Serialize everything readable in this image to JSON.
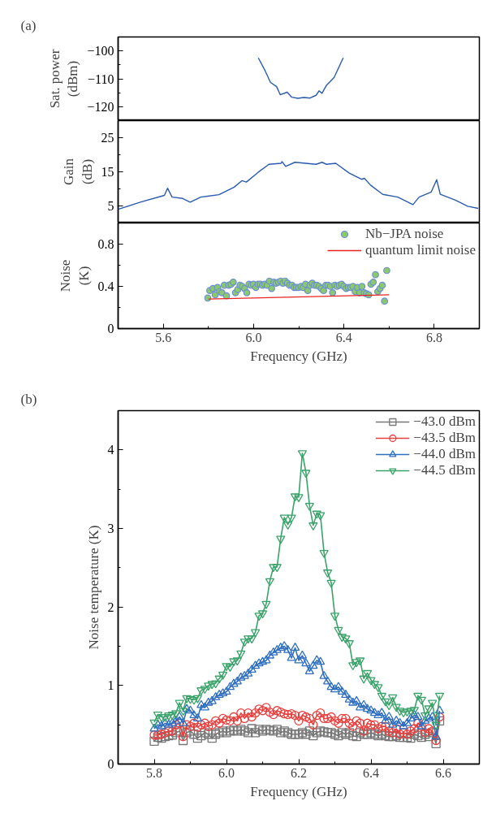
{
  "chart_data": [
    {
      "type": "line",
      "title": "(a)",
      "ylabel": "Sat. power (dBm)",
      "xlim": [
        5.4,
        7.0
      ],
      "xticks": [
        5.6,
        6.0,
        6.4,
        6.8
      ],
      "ylim": [
        -125,
        -95
      ],
      "yticks": [
        -120,
        -110,
        -100
      ],
      "tick_labels": "y",
      "grid": false,
      "legend": false,
      "series": [
        {
          "color": "#2a5bb0",
          "x": [
            6.021,
            6.048,
            6.075,
            6.102,
            6.118,
            6.149,
            6.169,
            6.196,
            6.223,
            6.25,
            6.277,
            6.29,
            6.303,
            6.323,
            6.357,
            6.397
          ],
          "values": [
            -102.5,
            -106.6,
            -111.3,
            -112.8,
            -115.7,
            -114.8,
            -116.6,
            -117.0,
            -116.7,
            -116.9,
            -115.9,
            -114.3,
            -115.2,
            -112.3,
            -109.5,
            -102.5
          ]
        }
      ]
    },
    {
      "type": "line",
      "ylabel": "Gain (dB)",
      "xlim": [
        5.4,
        7.0
      ],
      "xticks": [
        5.6,
        6.0,
        6.4,
        6.8
      ],
      "ylim": [
        0,
        30
      ],
      "yticks": [
        5,
        15,
        25
      ],
      "tick_labels": "y",
      "grid": false,
      "legend": false,
      "series": [
        {
          "color": "#2a5bb0",
          "x": [
            5.4,
            5.498,
            5.605,
            5.619,
            5.639,
            5.686,
            5.719,
            5.766,
            5.847,
            5.914,
            5.948,
            5.968,
            6.021,
            6.068,
            6.122,
            6.126,
            6.142,
            6.183,
            6.277,
            6.303,
            6.323,
            6.364,
            6.424,
            6.478,
            6.491,
            6.518,
            6.572,
            6.639,
            6.706,
            6.733,
            6.787,
            6.811,
            6.827,
            6.894,
            6.948,
            6.995
          ],
          "values": [
            4.0,
            6.1,
            8.1,
            10.2,
            7.6,
            7.2,
            6.1,
            7.6,
            8.3,
            10.5,
            12.4,
            12.0,
            14.9,
            17.2,
            17.5,
            18.0,
            16.6,
            17.8,
            17.2,
            17.8,
            17.2,
            17.5,
            14.6,
            12.8,
            13.1,
            11.1,
            8.4,
            7.6,
            5.4,
            7.6,
            9.1,
            12.7,
            8.4,
            6.7,
            4.9,
            4.3
          ]
        }
      ]
    },
    {
      "type": "scatter",
      "xlabel": "Frequency (GHz)",
      "ylabel": "Noise (K)",
      "xlim": [
        5.4,
        7.0
      ],
      "xticks": [
        5.6,
        {
          "value": 6.0,
          "label": "6.0"
        },
        6.4,
        6.8
      ],
      "ylim": [
        0,
        1.0
      ],
      "yticks": [
        0,
        0.4,
        0.8
      ],
      "grid": false,
      "legend": "top right",
      "series": [
        {
          "name": "Nb−JPA noise",
          "type": "scatter",
          "marker": "circle",
          "color": "#8cc96e",
          "x": [
            5.797,
            5.806,
            5.82,
            5.83,
            5.84,
            5.85,
            5.86,
            5.87,
            5.88,
            5.89,
            5.9,
            5.91,
            5.92,
            5.93,
            5.94,
            5.95,
            5.96,
            5.97,
            5.98,
            5.99,
            6.0,
            6.01,
            6.02,
            6.03,
            6.04,
            6.05,
            6.06,
            6.07,
            6.08,
            6.09,
            6.1,
            6.11,
            6.12,
            6.13,
            6.14,
            6.15,
            6.16,
            6.17,
            6.18,
            6.19,
            6.2,
            6.21,
            6.22,
            6.23,
            6.24,
            6.25,
            6.26,
            6.27,
            6.28,
            6.29,
            6.3,
            6.31,
            6.32,
            6.33,
            6.34,
            6.35,
            6.36,
            6.37,
            6.38,
            6.39,
            6.4,
            6.41,
            6.42,
            6.43,
            6.44,
            6.45,
            6.46,
            6.47,
            6.48,
            6.49,
            6.5,
            6.51,
            6.52,
            6.53,
            6.54,
            6.55,
            6.56,
            6.57,
            6.58,
            6.59
          ],
          "values": [
            0.29,
            0.36,
            0.38,
            0.32,
            0.39,
            0.35,
            0.34,
            0.41,
            0.31,
            0.41,
            0.42,
            0.44,
            0.34,
            0.37,
            0.41,
            0.4,
            0.38,
            0.34,
            0.42,
            0.41,
            0.42,
            0.39,
            0.42,
            0.42,
            0.41,
            0.42,
            0.41,
            0.45,
            0.38,
            0.44,
            0.43,
            0.44,
            0.45,
            0.43,
            0.45,
            0.43,
            0.41,
            0.41,
            0.39,
            0.39,
            0.39,
            0.4,
            0.39,
            0.42,
            0.36,
            0.41,
            0.43,
            0.41,
            0.41,
            0.4,
            0.38,
            0.36,
            0.41,
            0.41,
            0.4,
            0.34,
            0.41,
            0.4,
            0.41,
            0.42,
            0.4,
            0.38,
            0.39,
            0.39,
            0.4,
            0.35,
            0.39,
            0.34,
            0.4,
            0.34,
            0.33,
            0.32,
            0.42,
            0.44,
            0.51,
            0.35,
            0.38,
            0.41,
            0.26,
            0.55
          ]
        },
        {
          "name": "quantum limit noise",
          "type": "line",
          "color": "#e8231f",
          "x": [
            5.8,
            6.6
          ],
          "values": [
            0.28,
            0.32
          ]
        }
      ]
    },
    {
      "type": "line",
      "title": "(b)",
      "xlabel": "Frequency (GHz)",
      "ylabel": "Noise temperature (K)",
      "xlim": [
        5.7,
        6.7
      ],
      "xticks": [
        5.8,
        {
          "value": 6.0,
          "label": "6.0"
        },
        6.2,
        6.4,
        6.6
      ],
      "ylim": [
        0,
        4.5
      ],
      "yticks": [
        0,
        1,
        2,
        3,
        4
      ],
      "grid": false,
      "legend": "top right",
      "x": [
        5.8,
        5.81,
        5.82,
        5.83,
        5.84,
        5.85,
        5.86,
        5.87,
        5.88,
        5.89,
        5.9,
        5.91,
        5.92,
        5.93,
        5.94,
        5.95,
        5.96,
        5.97,
        5.98,
        5.99,
        6.0,
        6.01,
        6.02,
        6.03,
        6.04,
        6.05,
        6.06,
        6.07,
        6.08,
        6.09,
        6.1,
        6.11,
        6.12,
        6.13,
        6.14,
        6.15,
        6.16,
        6.17,
        6.18,
        6.19,
        6.2,
        6.21,
        6.22,
        6.23,
        6.24,
        6.25,
        6.26,
        6.27,
        6.28,
        6.29,
        6.3,
        6.31,
        6.32,
        6.33,
        6.34,
        6.35,
        6.36,
        6.37,
        6.38,
        6.39,
        6.4,
        6.41,
        6.42,
        6.43,
        6.44,
        6.45,
        6.46,
        6.47,
        6.48,
        6.49,
        6.5,
        6.51,
        6.52,
        6.53,
        6.54,
        6.55,
        6.56,
        6.57,
        6.58,
        6.59
      ],
      "series": [
        {
          "name": "−43.0 dBm",
          "marker": "square",
          "color": "#777777",
          "values": [
            0.29,
            0.34,
            0.33,
            0.35,
            0.36,
            0.37,
            0.4,
            0.42,
            0.3,
            0.4,
            0.42,
            0.38,
            0.33,
            0.36,
            0.4,
            0.38,
            0.33,
            0.38,
            0.4,
            0.42,
            0.4,
            0.42,
            0.43,
            0.42,
            0.44,
            0.42,
            0.4,
            0.45,
            0.4,
            0.44,
            0.42,
            0.44,
            0.43,
            0.42,
            0.44,
            0.4,
            0.42,
            0.4,
            0.38,
            0.38,
            0.38,
            0.4,
            0.38,
            0.42,
            0.36,
            0.4,
            0.42,
            0.41,
            0.4,
            0.4,
            0.38,
            0.36,
            0.4,
            0.38,
            0.4,
            0.36,
            0.35,
            0.4,
            0.38,
            0.38,
            0.4,
            0.38,
            0.36,
            0.38,
            0.36,
            0.35,
            0.35,
            0.36,
            0.34,
            0.34,
            0.34,
            0.33,
            0.38,
            0.36,
            0.34,
            0.38,
            0.35,
            0.4,
            0.26,
            0.55
          ]
        },
        {
          "name": "−43.5 dBm",
          "marker": "circle",
          "color": "#e8403e",
          "values": [
            0.37,
            0.37,
            0.38,
            0.4,
            0.42,
            0.42,
            0.5,
            0.52,
            0.35,
            0.5,
            0.48,
            0.52,
            0.47,
            0.5,
            0.52,
            0.48,
            0.5,
            0.55,
            0.52,
            0.58,
            0.56,
            0.55,
            0.6,
            0.55,
            0.65,
            0.58,
            0.65,
            0.6,
            0.65,
            0.7,
            0.68,
            0.72,
            0.66,
            0.63,
            0.68,
            0.66,
            0.64,
            0.63,
            0.64,
            0.62,
            0.55,
            0.62,
            0.6,
            0.58,
            0.5,
            0.62,
            0.65,
            0.58,
            0.58,
            0.6,
            0.55,
            0.52,
            0.58,
            0.58,
            0.52,
            0.48,
            0.55,
            0.52,
            0.42,
            0.52,
            0.5,
            0.5,
            0.45,
            0.48,
            0.48,
            0.42,
            0.4,
            0.45,
            0.38,
            0.4,
            0.38,
            0.42,
            0.45,
            0.52,
            0.48,
            0.4,
            0.45,
            0.42,
            0.3,
            0.6
          ]
        },
        {
          "name": "−44.0 dBm",
          "marker": "triangle",
          "color": "#2f6fbf",
          "values": [
            0.45,
            0.5,
            0.48,
            0.52,
            0.5,
            0.52,
            0.55,
            0.6,
            0.52,
            0.7,
            0.68,
            0.62,
            0.58,
            0.75,
            0.72,
            0.78,
            0.8,
            0.85,
            0.88,
            0.9,
            0.92,
            0.98,
            1.02,
            1.05,
            1.1,
            1.12,
            1.15,
            1.2,
            1.25,
            1.28,
            1.3,
            1.32,
            1.38,
            1.42,
            1.45,
            1.48,
            1.5,
            1.45,
            1.35,
            1.48,
            1.32,
            1.38,
            1.28,
            1.18,
            1.25,
            1.32,
            1.3,
            1.12,
            1.05,
            0.98,
            0.95,
            0.98,
            0.92,
            0.88,
            0.82,
            0.78,
            0.8,
            0.72,
            0.75,
            0.7,
            0.68,
            0.65,
            0.62,
            0.65,
            0.55,
            0.6,
            0.5,
            0.55,
            0.52,
            0.48,
            0.52,
            0.58,
            0.62,
            0.6,
            0.48,
            0.55,
            0.58,
            0.6,
            0.35,
            0.68
          ]
        },
        {
          "name": "−44.5 dBm",
          "marker": "triangle",
          "color": "#3aa36a",
          "values": [
            0.53,
            0.63,
            0.6,
            0.6,
            0.62,
            0.63,
            0.65,
            0.78,
            0.68,
            0.84,
            0.83,
            0.82,
            0.84,
            0.94,
            0.96,
            1.0,
            1.02,
            1.03,
            1.09,
            1.14,
            1.25,
            1.24,
            1.31,
            1.32,
            1.41,
            1.56,
            1.6,
            1.6,
            1.68,
            1.89,
            1.92,
            2.04,
            2.33,
            2.51,
            2.51,
            2.87,
            3.14,
            3.05,
            3.14,
            3.41,
            3.4,
            3.96,
            3.71,
            3.29,
            3.04,
            3.19,
            3.17,
            2.69,
            2.44,
            2.31,
            1.89,
            1.71,
            1.62,
            1.6,
            1.54,
            1.26,
            1.3,
            1.32,
            1.09,
            1.16,
            1.07,
            1.02,
            0.98,
            0.87,
            0.8,
            0.75,
            0.85,
            0.73,
            0.68,
            0.66,
            0.67,
            0.68,
            0.69,
            0.87,
            0.82,
            0.62,
            0.71,
            0.78,
            0.5,
            0.87
          ]
        }
      ]
    }
  ]
}
